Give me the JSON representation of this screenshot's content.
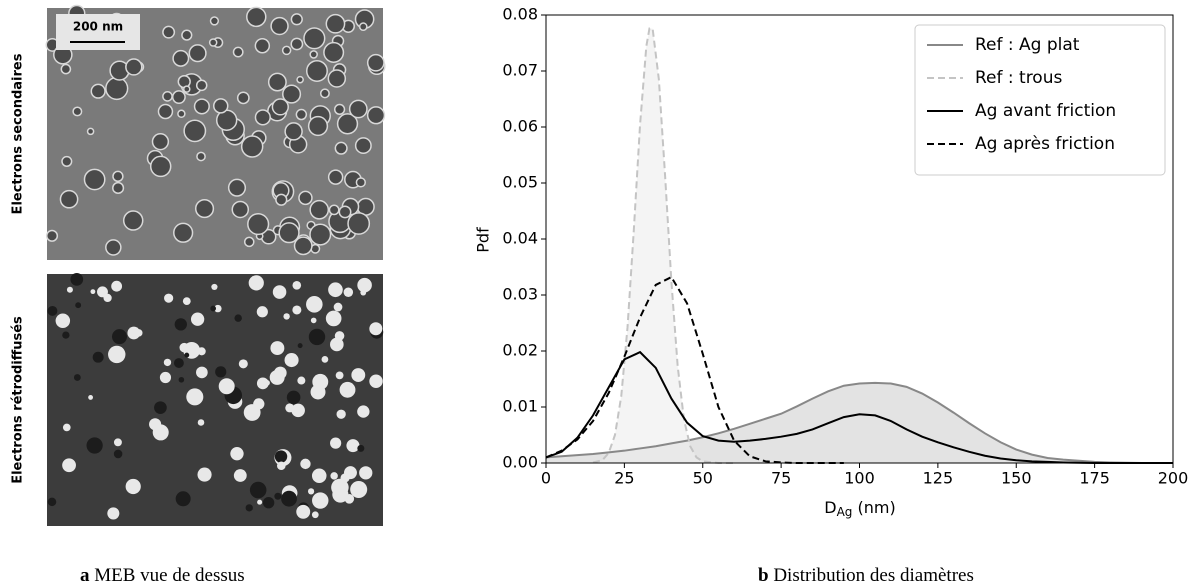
{
  "figure_a": {
    "scale_bar": "200 nm",
    "top_label": "Electrons secondaires",
    "bottom_label": "Electrons rétrodiffusés"
  },
  "captions": [
    {
      "label": "a",
      "text": "MEB vue de dessus"
    },
    {
      "label": "b",
      "text": "Distribution des diamètres"
    }
  ],
  "chart_data": {
    "type": "line",
    "y_label": "Pdf",
    "x_label": {
      "main": "D",
      "sub": "Ag",
      "rest": " (nm)"
    },
    "xlim": [
      0,
      200
    ],
    "xticks": [
      0,
      25,
      50,
      75,
      100,
      125,
      150,
      175,
      200
    ],
    "ylim": [
      0,
      0.08
    ],
    "yticks": [
      {
        "value": 0,
        "label": "0.00"
      },
      {
        "value": 0.01,
        "label": "0.01"
      },
      {
        "value": 0.02,
        "label": "0.02"
      },
      {
        "value": 0.03,
        "label": "0.03"
      },
      {
        "value": 0.04,
        "label": "0.04"
      },
      {
        "value": 0.05,
        "label": "0.05"
      },
      {
        "value": 0.06,
        "label": "0.06"
      },
      {
        "value": 0.07,
        "label": "0.07"
      },
      {
        "value": 0.08,
        "label": "0.08"
      }
    ],
    "legend": "upper right",
    "series": [
      {
        "name": "Ref : Ag plat",
        "color": "#888888",
        "dash": false,
        "fill": "#d0d0d0",
        "x": [
          0,
          5,
          10,
          15,
          20,
          25,
          30,
          35,
          40,
          45,
          50,
          55,
          60,
          65,
          70,
          75,
          80,
          85,
          90,
          95,
          100,
          105,
          110,
          115,
          120,
          125,
          130,
          135,
          140,
          145,
          150,
          155,
          160,
          165,
          170,
          175,
          180,
          185,
          190,
          195,
          200
        ],
        "values": [
          0.001,
          0.0012,
          0.0014,
          0.0016,
          0.0019,
          0.0022,
          0.0026,
          0.003,
          0.0035,
          0.004,
          0.0046,
          0.0053,
          0.0061,
          0.007,
          0.0079,
          0.0088,
          0.0101,
          0.0115,
          0.0128,
          0.0138,
          0.0142,
          0.0143,
          0.0142,
          0.0136,
          0.0124,
          0.0108,
          0.009,
          0.0071,
          0.0053,
          0.0037,
          0.0024,
          0.0015,
          0.0009,
          0.0006,
          0.0004,
          0.0002,
          0.0001,
          5e-05,
          0,
          0,
          0
        ]
      },
      {
        "name": "Ref : trous",
        "color": "#c4c4c4",
        "dash": true,
        "fill": "#ececec",
        "x": [
          15,
          18,
          20,
          22,
          24,
          26,
          28,
          30,
          32,
          33,
          34,
          36,
          38,
          40,
          42,
          44,
          46,
          48,
          50,
          55,
          60
        ],
        "values": [
          0.0001,
          0.0005,
          0.0018,
          0.005,
          0.0119,
          0.0242,
          0.0415,
          0.0604,
          0.0744,
          0.0776,
          0.0776,
          0.0685,
          0.0512,
          0.0324,
          0.0173,
          0.0078,
          0.003,
          0.001,
          0.0003,
          0,
          0
        ]
      },
      {
        "name": "Ag avant friction",
        "color": "#000000",
        "dash": false,
        "x": [
          0,
          5,
          10,
          15,
          20,
          25,
          30,
          35,
          40,
          45,
          50,
          55,
          60,
          65,
          70,
          75,
          80,
          85,
          90,
          95,
          100,
          105,
          110,
          115,
          120,
          125,
          130,
          135,
          140,
          145,
          150,
          155,
          160,
          165,
          170,
          175,
          180,
          185,
          190,
          195,
          200
        ],
        "values": [
          0.001,
          0.002,
          0.0045,
          0.0085,
          0.0135,
          0.0185,
          0.0198,
          0.017,
          0.0115,
          0.0072,
          0.0048,
          0.004,
          0.0038,
          0.004,
          0.0043,
          0.0047,
          0.0052,
          0.006,
          0.0071,
          0.0082,
          0.0087,
          0.0085,
          0.0075,
          0.006,
          0.0047,
          0.0037,
          0.0028,
          0.002,
          0.0013,
          0.0008,
          0.0005,
          0.0003,
          0.0002,
          0.0001,
          5e-05,
          0,
          0,
          0,
          0,
          0,
          0
        ]
      },
      {
        "name": "Ag après friction",
        "color": "#000000",
        "dash": true,
        "x": [
          0,
          5,
          10,
          15,
          20,
          25,
          30,
          35,
          40,
          45,
          50,
          55,
          60,
          65,
          70,
          75,
          80,
          85,
          90,
          95
        ],
        "values": [
          0.001,
          0.0022,
          0.0042,
          0.0075,
          0.0125,
          0.019,
          0.026,
          0.0318,
          0.0332,
          0.0285,
          0.0195,
          0.01,
          0.004,
          0.0012,
          0.0003,
          0.0001,
          0,
          0,
          0,
          0
        ]
      }
    ]
  }
}
